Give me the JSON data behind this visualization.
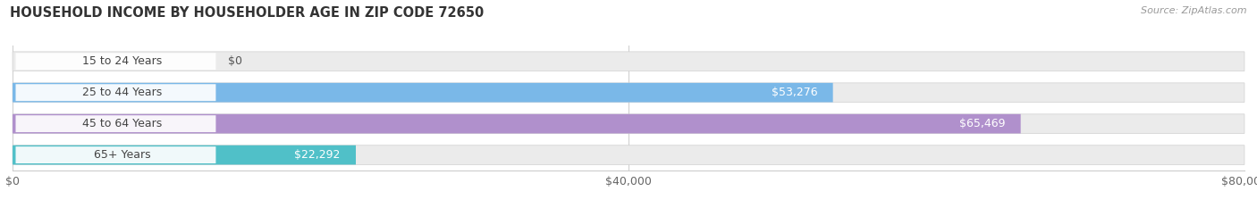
{
  "title": "HOUSEHOLD INCOME BY HOUSEHOLDER AGE IN ZIP CODE 72650",
  "source": "Source: ZipAtlas.com",
  "categories": [
    "15 to 24 Years",
    "25 to 44 Years",
    "45 to 64 Years",
    "65+ Years"
  ],
  "values": [
    0,
    53276,
    65469,
    22292
  ],
  "bar_colors": [
    "#f0a0a8",
    "#7ab8e8",
    "#b090cc",
    "#50c0c8"
  ],
  "bar_bg_color": "#ebebeb",
  "label_bg_color": "#ffffff",
  "value_labels": [
    "$0",
    "$53,276",
    "$65,469",
    "$22,292"
  ],
  "xlim": [
    0,
    80000
  ],
  "xticks": [
    0,
    40000,
    80000
  ],
  "xticklabels": [
    "$0",
    "$40,000",
    "$80,000"
  ],
  "figsize": [
    14.06,
    2.33
  ],
  "dpi": 100,
  "title_fontsize": 10.5,
  "label_fontsize": 9,
  "tick_fontsize": 9,
  "source_fontsize": 8
}
